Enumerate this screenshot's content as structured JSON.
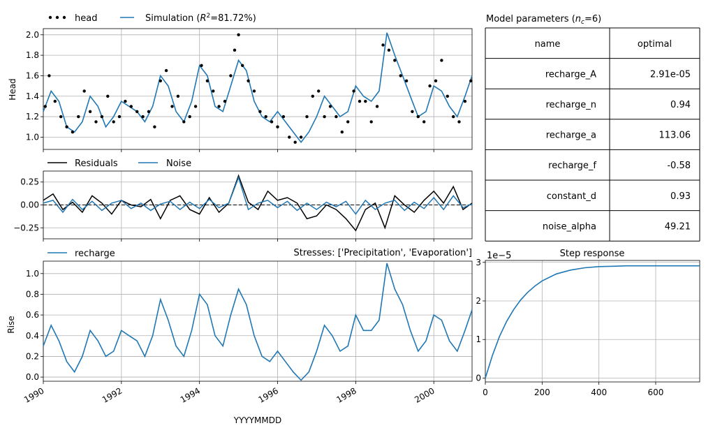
{
  "colors": {
    "simulation": "#1f77b4",
    "head": "#000000",
    "residuals": "#000000",
    "noise": "#1f77b4",
    "recharge": "#1f77b4",
    "grid": "#b0b0b0"
  },
  "xaxis": {
    "label": "YYYYMMDD",
    "ticks": [
      "1990",
      "1992",
      "1994",
      "1996",
      "1998",
      "2000"
    ]
  },
  "panels": {
    "head": {
      "ylabel": "Head",
      "yticks": [
        "1.0",
        "1.2",
        "1.4",
        "1.6",
        "1.8",
        "2.0"
      ],
      "legend": {
        "observed": "head",
        "simulated_prefix": "Simulation (",
        "simulated_r2_symbol": "R",
        "simulated_r2_sup": "2",
        "simulated_suffix": "=81.72%)"
      }
    },
    "residuals": {
      "yticks": [
        "0.25",
        "0.00",
        "−0.25"
      ],
      "legend": {
        "residuals": "Residuals",
        "noise": "Noise"
      }
    },
    "recharge": {
      "ylabel": "Rise",
      "yticks": [
        "0.0",
        "0.2",
        "0.4",
        "0.6",
        "0.8",
        "1.0"
      ],
      "legend": {
        "recharge": "recharge"
      },
      "stresses_label": "Stresses: ['Precipitation', 'Evaporation']"
    },
    "params": {
      "title_prefix": "Model parameters (",
      "title_sym": "n",
      "title_sub": "c",
      "title_suffix": "=6)",
      "header": [
        "name",
        "optimal"
      ],
      "rows": [
        {
          "name": "recharge_A",
          "optimal": "2.91e-05"
        },
        {
          "name": "recharge_n",
          "optimal": "0.94"
        },
        {
          "name": "recharge_a",
          "optimal": "113.06"
        },
        {
          "name": "recharge_f",
          "optimal": "-0.58"
        },
        {
          "name": "constant_d",
          "optimal": "0.93"
        },
        {
          "name": "noise_alpha",
          "optimal": "49.21"
        }
      ]
    },
    "step": {
      "title": "Step response",
      "exponent": "1e−5",
      "yticks": [
        "0",
        "1",
        "2",
        "3"
      ],
      "xticks": [
        "0",
        "200",
        "400",
        "600"
      ]
    }
  },
  "chart_data": [
    {
      "type": "line",
      "title": "",
      "xlabel": "",
      "ylabel": "Head",
      "xlim": [
        1990.0,
        2000.98
      ],
      "ylim": [
        0.88,
        2.06
      ],
      "series": [
        {
          "name": "Simulation (R²=81.72%)",
          "kind": "line",
          "x": [
            1990.0,
            1990.2,
            1990.4,
            1990.6,
            1990.8,
            1991.0,
            1991.2,
            1991.4,
            1991.6,
            1991.8,
            1992.0,
            1992.2,
            1992.4,
            1992.6,
            1992.8,
            1993.0,
            1993.2,
            1993.4,
            1993.6,
            1993.8,
            1994.0,
            1994.2,
            1994.4,
            1994.6,
            1994.8,
            1995.0,
            1995.2,
            1995.4,
            1995.6,
            1995.8,
            1996.0,
            1996.2,
            1996.4,
            1996.6,
            1996.8,
            1997.0,
            1997.2,
            1997.4,
            1997.6,
            1997.8,
            1998.0,
            1998.2,
            1998.4,
            1998.6,
            1998.8,
            1999.0,
            1999.2,
            1999.4,
            1999.6,
            1999.8,
            2000.0,
            2000.2,
            2000.4,
            2000.6,
            2000.8,
            2000.98
          ],
          "y": [
            1.25,
            1.45,
            1.35,
            1.1,
            1.05,
            1.15,
            1.4,
            1.3,
            1.1,
            1.2,
            1.35,
            1.3,
            1.25,
            1.15,
            1.3,
            1.6,
            1.5,
            1.25,
            1.15,
            1.35,
            1.7,
            1.6,
            1.3,
            1.25,
            1.5,
            1.75,
            1.65,
            1.35,
            1.2,
            1.15,
            1.25,
            1.15,
            1.05,
            0.95,
            1.05,
            1.2,
            1.4,
            1.3,
            1.2,
            1.25,
            1.5,
            1.4,
            1.35,
            1.45,
            2.02,
            1.8,
            1.6,
            1.4,
            1.2,
            1.25,
            1.5,
            1.45,
            1.3,
            1.2,
            1.4,
            1.6
          ]
        },
        {
          "name": "head",
          "kind": "scatter",
          "x": [
            1990.05,
            1990.15,
            1990.3,
            1990.45,
            1990.6,
            1990.75,
            1990.9,
            1991.05,
            1991.2,
            1991.35,
            1991.5,
            1991.65,
            1991.8,
            1991.95,
            1992.1,
            1992.25,
            1992.4,
            1992.55,
            1992.7,
            1992.85,
            1993.0,
            1993.15,
            1993.3,
            1993.45,
            1993.6,
            1993.75,
            1993.9,
            1994.05,
            1994.2,
            1994.35,
            1994.5,
            1994.65,
            1994.8,
            1994.9,
            1995.0,
            1995.1,
            1995.25,
            1995.4,
            1995.55,
            1995.7,
            1995.85,
            1996.0,
            1996.15,
            1996.3,
            1996.45,
            1996.6,
            1996.75,
            1996.9,
            1997.05,
            1997.2,
            1997.35,
            1997.5,
            1997.65,
            1997.8,
            1997.95,
            1998.1,
            1998.25,
            1998.4,
            1998.55,
            1998.7,
            1998.85,
            1999.0,
            1999.15,
            1999.3,
            1999.45,
            1999.6,
            1999.75,
            1999.9,
            2000.05,
            2000.2,
            2000.35,
            2000.5,
            2000.65,
            2000.8,
            2000.95
          ],
          "y": [
            1.3,
            1.6,
            1.35,
            1.2,
            1.1,
            1.05,
            1.2,
            1.45,
            1.25,
            1.15,
            1.2,
            1.4,
            1.15,
            1.2,
            1.35,
            1.3,
            1.25,
            1.2,
            1.25,
            1.1,
            1.55,
            1.65,
            1.3,
            1.4,
            1.15,
            1.2,
            1.3,
            1.7,
            1.55,
            1.45,
            1.3,
            1.35,
            1.6,
            1.85,
            2.0,
            1.7,
            1.55,
            1.45,
            1.25,
            1.2,
            1.15,
            1.1,
            1.2,
            1.0,
            0.95,
            1.0,
            1.2,
            1.4,
            1.45,
            1.2,
            1.3,
            1.2,
            1.05,
            1.15,
            1.45,
            1.35,
            1.35,
            1.15,
            1.3,
            1.9,
            1.85,
            1.75,
            1.6,
            1.55,
            1.25,
            1.2,
            1.15,
            1.5,
            1.55,
            1.75,
            1.4,
            1.2,
            1.15,
            1.35,
            1.55
          ]
        }
      ]
    },
    {
      "type": "line",
      "title": "",
      "xlabel": "",
      "ylabel": "",
      "xlim": [
        1990.0,
        2000.98
      ],
      "ylim": [
        -0.37,
        0.37
      ],
      "series": [
        {
          "name": "Residuals",
          "x": [
            1990.0,
            1990.25,
            1990.5,
            1990.75,
            1991.0,
            1991.25,
            1991.5,
            1991.75,
            1992.0,
            1992.25,
            1992.5,
            1992.75,
            1993.0,
            1993.25,
            1993.5,
            1993.75,
            1994.0,
            1994.25,
            1994.5,
            1994.75,
            1995.0,
            1995.25,
            1995.5,
            1995.75,
            1996.0,
            1996.25,
            1996.5,
            1996.75,
            1997.0,
            1997.25,
            1997.5,
            1997.75,
            1998.0,
            1998.25,
            1998.5,
            1998.75,
            1999.0,
            1999.25,
            1999.5,
            1999.75,
            2000.0,
            2000.25,
            2000.5,
            2000.75,
            2000.98
          ],
          "y": [
            0.05,
            0.12,
            -0.05,
            0.03,
            -0.08,
            0.1,
            0.02,
            -0.1,
            0.05,
            0.0,
            -0.02,
            0.06,
            -0.15,
            0.05,
            0.1,
            -0.05,
            -0.1,
            0.08,
            -0.08,
            0.02,
            0.32,
            0.03,
            -0.05,
            0.15,
            0.05,
            0.08,
            0.02,
            -0.15,
            -0.12,
            0.0,
            -0.05,
            -0.15,
            -0.28,
            -0.05,
            0.02,
            -0.25,
            0.1,
            0.0,
            -0.08,
            0.05,
            0.15,
            0.02,
            0.2,
            -0.05,
            0.02
          ]
        },
        {
          "name": "Noise",
          "x": [
            1990.0,
            1990.25,
            1990.5,
            1990.75,
            1991.0,
            1991.25,
            1991.5,
            1991.75,
            1992.0,
            1992.25,
            1992.5,
            1992.75,
            1993.0,
            1993.25,
            1993.5,
            1993.75,
            1994.0,
            1994.25,
            1994.5,
            1994.75,
            1995.0,
            1995.25,
            1995.5,
            1995.75,
            1996.0,
            1996.25,
            1996.5,
            1996.75,
            1997.0,
            1997.25,
            1997.5,
            1997.75,
            1998.0,
            1998.25,
            1998.5,
            1998.75,
            1999.0,
            1999.25,
            1999.5,
            1999.75,
            2000.0,
            2000.25,
            2000.5,
            2000.75,
            2000.98
          ],
          "y": [
            0.02,
            0.05,
            -0.08,
            0.06,
            -0.05,
            0.04,
            -0.06,
            0.02,
            0.05,
            -0.04,
            0.02,
            -0.06,
            0.01,
            0.04,
            -0.05,
            0.03,
            -0.04,
            0.06,
            -0.03,
            0.02,
            0.3,
            -0.05,
            0.02,
            0.05,
            -0.03,
            0.04,
            -0.06,
            0.02,
            -0.05,
            0.03,
            -0.02,
            0.04,
            -0.1,
            0.05,
            -0.05,
            0.02,
            0.05,
            -0.06,
            0.03,
            -0.04,
            0.08,
            -0.05,
            0.1,
            -0.03,
            0.01
          ]
        }
      ]
    },
    {
      "type": "line",
      "title": "",
      "xlabel": "YYYYMMDD",
      "ylabel": "Rise",
      "xlim": [
        1990.0,
        2000.98
      ],
      "ylim": [
        -0.04,
        1.12
      ],
      "series": [
        {
          "name": "recharge",
          "x": [
            1990.0,
            1990.2,
            1990.4,
            1990.6,
            1990.8,
            1991.0,
            1991.2,
            1991.4,
            1991.6,
            1991.8,
            1992.0,
            1992.2,
            1992.4,
            1992.6,
            1992.8,
            1993.0,
            1993.2,
            1993.4,
            1993.6,
            1993.8,
            1994.0,
            1994.2,
            1994.4,
            1994.6,
            1994.8,
            1995.0,
            1995.2,
            1995.4,
            1995.6,
            1995.8,
            1996.0,
            1996.2,
            1996.4,
            1996.6,
            1996.8,
            1997.0,
            1997.2,
            1997.4,
            1997.6,
            1997.8,
            1998.0,
            1998.2,
            1998.4,
            1998.6,
            1998.8,
            1999.0,
            1999.2,
            1999.4,
            1999.6,
            1999.8,
            2000.0,
            2000.2,
            2000.4,
            2000.6,
            2000.8,
            2000.98
          ],
          "y": [
            0.3,
            0.5,
            0.35,
            0.15,
            0.05,
            0.2,
            0.45,
            0.35,
            0.2,
            0.25,
            0.45,
            0.4,
            0.35,
            0.2,
            0.4,
            0.75,
            0.55,
            0.3,
            0.2,
            0.45,
            0.8,
            0.7,
            0.4,
            0.3,
            0.6,
            0.85,
            0.7,
            0.4,
            0.2,
            0.15,
            0.25,
            0.15,
            0.05,
            -0.03,
            0.05,
            0.25,
            0.5,
            0.4,
            0.25,
            0.3,
            0.6,
            0.45,
            0.45,
            0.55,
            1.1,
            0.85,
            0.7,
            0.45,
            0.25,
            0.35,
            0.6,
            0.55,
            0.35,
            0.25,
            0.45,
            0.65
          ]
        }
      ]
    },
    {
      "type": "line",
      "title": "Step response",
      "xlabel": "",
      "ylabel": "",
      "xlim": [
        0,
        755
      ],
      "ylim": [
        -1e-06,
        3.05e-05
      ],
      "series": [
        {
          "name": "",
          "x": [
            0,
            25,
            50,
            75,
            100,
            125,
            150,
            175,
            200,
            250,
            300,
            350,
            400,
            450,
            500,
            550,
            600,
            650,
            700,
            755
          ],
          "y": [
            0,
            5.9e-06,
            1.08e-05,
            1.47e-05,
            1.78e-05,
            2.03e-05,
            2.23e-05,
            2.39e-05,
            2.52e-05,
            2.7e-05,
            2.8e-05,
            2.86e-05,
            2.89e-05,
            2.9e-05,
            2.91e-05,
            2.91e-05,
            2.91e-05,
            2.91e-05,
            2.91e-05,
            2.91e-05
          ]
        }
      ]
    }
  ]
}
